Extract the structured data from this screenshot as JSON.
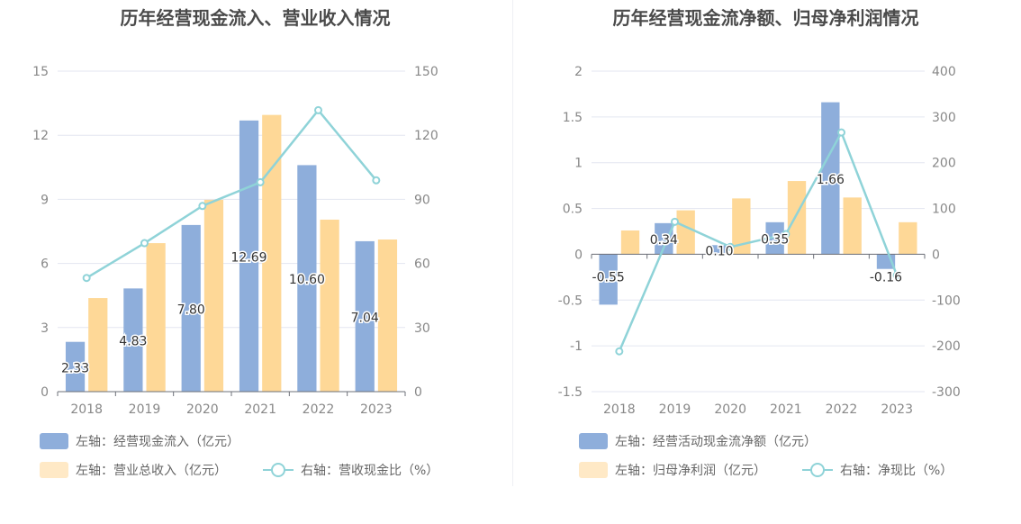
{
  "chart_data": [
    {
      "type": "bar",
      "title": "历年经营现金流入、营业收入情况",
      "categories": [
        "2018",
        "2019",
        "2020",
        "2021",
        "2022",
        "2023"
      ],
      "series": [
        {
          "name": "左轴：经营现金流入（亿元）",
          "axis": "left",
          "type": "bar",
          "color": "#8eaedb",
          "values": [
            2.33,
            4.83,
            7.8,
            12.69,
            10.6,
            7.04
          ],
          "labels": [
            "2.33",
            "4.83",
            "7.80",
            "12.69",
            "10.60",
            "7.04"
          ]
        },
        {
          "name": "左轴：营业总收入（亿元）",
          "axis": "left",
          "type": "bar",
          "color": "#fed897",
          "values": [
            4.38,
            6.95,
            8.98,
            12.95,
            8.05,
            7.12
          ]
        },
        {
          "name": "右轴：营收现金比（%）",
          "axis": "right",
          "type": "line",
          "color": "#8fd3d8",
          "values": [
            53.2,
            69.5,
            86.9,
            98.0,
            131.7,
            98.9
          ]
        }
      ],
      "left_axis": {
        "min": 0,
        "max": 15,
        "ticks": [
          "0",
          "3",
          "6",
          "9",
          "12",
          "15"
        ]
      },
      "right_axis": {
        "min": 0,
        "max": 150,
        "ticks": [
          "0",
          "30",
          "60",
          "90",
          "120",
          "150"
        ]
      },
      "grid": true,
      "legend_position": "bottom"
    },
    {
      "type": "bar",
      "title": "历年经营现金流净额、归母净利润情况",
      "categories": [
        "2018",
        "2019",
        "2020",
        "2021",
        "2022",
        "2023"
      ],
      "series": [
        {
          "name": "左轴：经营活动现金流净额（亿元）",
          "axis": "left",
          "type": "bar",
          "color": "#8eaedb",
          "values": [
            -0.55,
            0.34,
            0.1,
            0.35,
            1.66,
            -0.16
          ],
          "labels": [
            "-0.55",
            "0.34",
            "0.10",
            "0.35",
            "1.66",
            "-0.16"
          ]
        },
        {
          "name": "左轴：归母净利润（亿元）",
          "axis": "left",
          "type": "bar",
          "color": "#fed897",
          "values": [
            0.26,
            0.48,
            0.61,
            0.8,
            0.62,
            0.35
          ]
        },
        {
          "name": "右轴：净现比（%）",
          "axis": "right",
          "type": "line",
          "color": "#8fd3d8",
          "values": [
            -212,
            71,
            16,
            44,
            266,
            -46
          ]
        }
      ],
      "left_axis": {
        "min": -1.5,
        "max": 2,
        "ticks": [
          "-1.5",
          "-1",
          "-0.5",
          "0",
          "0.5",
          "1",
          "1.5",
          "2"
        ]
      },
      "right_axis": {
        "min": -300,
        "max": 400,
        "ticks": [
          "-300",
          "-200",
          "-100",
          "0",
          "100",
          "200",
          "300",
          "400"
        ]
      },
      "grid": true,
      "legend_position": "bottom"
    }
  ]
}
